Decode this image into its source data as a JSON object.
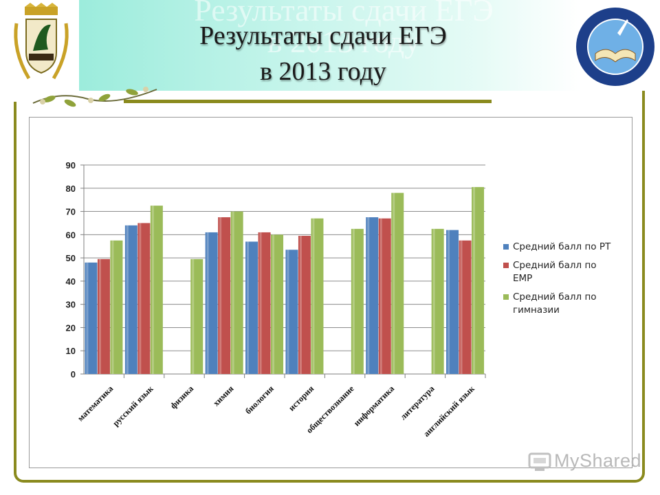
{
  "slide": {
    "title_line1": "Результаты сдачи ЕГЭ",
    "title_line2": "в 2013 году",
    "watermark": "MyShared"
  },
  "colors": {
    "rt": "#4f81bd",
    "emr": "#c0504d",
    "gym": "#9bbb59",
    "frame": "#8a8a1e",
    "banner": "#a9eedf"
  },
  "chart_data": {
    "type": "bar",
    "categories": [
      "математика",
      "русский язык",
      "физика",
      "химия",
      "биология",
      "история",
      "обществознание",
      "информатика",
      "литература",
      "английский язык"
    ],
    "series": [
      {
        "name": "Средний балл по РТ",
        "values": [
          48,
          64,
          null,
          61,
          57,
          53.5,
          null,
          67.5,
          null,
          62
        ]
      },
      {
        "name": "Средний балл по ЕМР",
        "values": [
          49.5,
          65,
          null,
          67.5,
          61,
          59.5,
          null,
          67,
          null,
          57.5
        ]
      },
      {
        "name": "Средний балл по гимназии",
        "values": [
          57.5,
          72.5,
          49.5,
          70,
          60,
          67,
          62.5,
          78,
          62.5,
          80.5
        ]
      }
    ],
    "yticks": [
      "0",
      "10",
      "20",
      "30",
      "40",
      "50",
      "60",
      "70",
      "80",
      "90"
    ],
    "ylim": [
      0,
      90
    ],
    "grid": true,
    "legend_position": "right",
    "title": "",
    "xlabel": "",
    "ylabel": ""
  }
}
